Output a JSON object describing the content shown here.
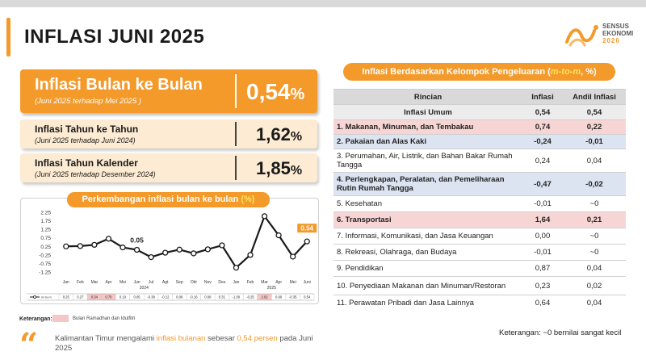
{
  "header": {
    "title": "INFLASI JUNI 2025"
  },
  "logo": {
    "line1": "SENSUS",
    "line2": "EKONOMI",
    "year": "2026"
  },
  "summary": {
    "mtm": {
      "label": "Inflasi Bulan ke Bulan",
      "sub": "(Juni 2025 terhadap Mei 2025 )",
      "value": "0,54",
      "unit": "%"
    },
    "yoy": {
      "label": "Inflasi Tahun ke Tahun",
      "sub": "(Juni 2025 terhadap Juni 2024)",
      "value": "1,62",
      "unit": "%"
    },
    "ytd": {
      "label": "Inflasi Tahun Kalender",
      "sub": "(Juni 2025 terhadap Desember 2024)",
      "value": "1,85",
      "unit": "%"
    }
  },
  "chart_title": {
    "text": "Perkembangan inflasi bulan ke bulan ",
    "pct": "(%)"
  },
  "chart_data": {
    "type": "line",
    "x": [
      "Jan",
      "Feb",
      "Mar",
      "Apr",
      "Mei",
      "Jun",
      "Jul",
      "Agt",
      "Sep",
      "Okt",
      "Nov",
      "Des",
      "Jan",
      "Feb",
      "Mar",
      "Apr",
      "Mei",
      "Juni"
    ],
    "year_labels": [
      "2024",
      "2025"
    ],
    "series": [
      {
        "name": "m-to-m",
        "values": [
          0.25,
          0.27,
          0.34,
          0.7,
          0.19,
          0.05,
          -0.38,
          -0.12,
          0.06,
          -0.16,
          0.08,
          0.31,
          -1.0,
          -0.25,
          2.02,
          0.9,
          -0.35,
          0.54
        ]
      }
    ],
    "table_values": [
      "0.25",
      "0.27",
      "0.34",
      "0.70",
      "0.19",
      "0.05",
      "-0.38",
      "-0.12",
      "0.06",
      "-0.16",
      "0.08",
      "0.31",
      "-1.00",
      "-0.25",
      "2.02",
      "0.90",
      "-0.35",
      "0.54"
    ],
    "highlight_months": [
      2,
      3,
      14
    ],
    "annotations": [
      {
        "index": 5,
        "text": "0.05"
      },
      {
        "index": 17,
        "text": "0.54"
      }
    ],
    "y_ticks": [
      "2.25",
      "1.75",
      "1.25",
      "0.75",
      "0.25",
      "-0.25",
      "-0.75",
      "-1.25"
    ],
    "ylim": [
      -1.25,
      2.25
    ],
    "color": "#1a1a1a",
    "accent": "#f39a2b"
  },
  "legend": {
    "label": "Keterangan:",
    "item": "Bulan Ramadhan dan Idulfitri"
  },
  "quote": {
    "pre": "Kalimantan Timur mengalami ",
    "hl1": "inflasi bulanan",
    "mid": " sebesar ",
    "hl2": "0,54 persen",
    "post": " pada Juni 2025"
  },
  "table": {
    "title": "Inflasi Berdasarkan Kelompok Pengeluaran (",
    "title_mtm": "m-to-m",
    "title_end": ", %)",
    "headers": [
      "Rincian",
      "Inflasi",
      "Andil Inflasi"
    ],
    "total": {
      "label": "Inflasi Umum",
      "inflasi": "0,54",
      "andil": "0,54"
    },
    "rows": [
      {
        "label": "1.  Makanan, Minuman, dan Tembakau",
        "inflasi": "0,74",
        "andil": "0,22",
        "style": "red"
      },
      {
        "label": "2.  Pakaian dan Alas Kaki",
        "inflasi": "-0,24",
        "andil": "-0,01",
        "style": "blue"
      },
      {
        "label": "3.  Perumahan, Air, Listrik, dan Bahan Bakar Rumah Tangga",
        "inflasi": "0,24",
        "andil": "0,04",
        "style": "plain"
      },
      {
        "label": "4.  Perlengkapan, Peralatan, dan Pemeliharaan Rutin Rumah Tangga",
        "inflasi": "-0,47",
        "andil": "-0,02",
        "style": "blue"
      },
      {
        "label": "5.  Kesehatan",
        "inflasi": "-0,01",
        "andil": "~0",
        "style": "plain"
      },
      {
        "label": "6.  Transportasi",
        "inflasi": "1,64",
        "andil": "0,21",
        "style": "red"
      },
      {
        "label": "7.  Informasi, Komunikasi, dan Jasa Keuangan",
        "inflasi": "0,00",
        "andil": "~0",
        "style": "plain"
      },
      {
        "label": "8.  Rekreasi, Olahraga, dan Budaya",
        "inflasi": "-0,01",
        "andil": "~0",
        "style": "plain"
      },
      {
        "label": "9.  Pendidikan",
        "inflasi": "0,87",
        "andil": "0,04",
        "style": "plain"
      },
      {
        "label": "10. Penyediaan Makanan dan Minuman/Restoran",
        "inflasi": "0,23",
        "andil": "0,02",
        "style": "plain"
      },
      {
        "label": "11. Perawatan Pribadi dan Jasa Lainnya",
        "inflasi": "0,64",
        "andil": "0,04",
        "style": "plain"
      }
    ],
    "note": "Keterangan: ~0 bernilai sangat kecil"
  }
}
